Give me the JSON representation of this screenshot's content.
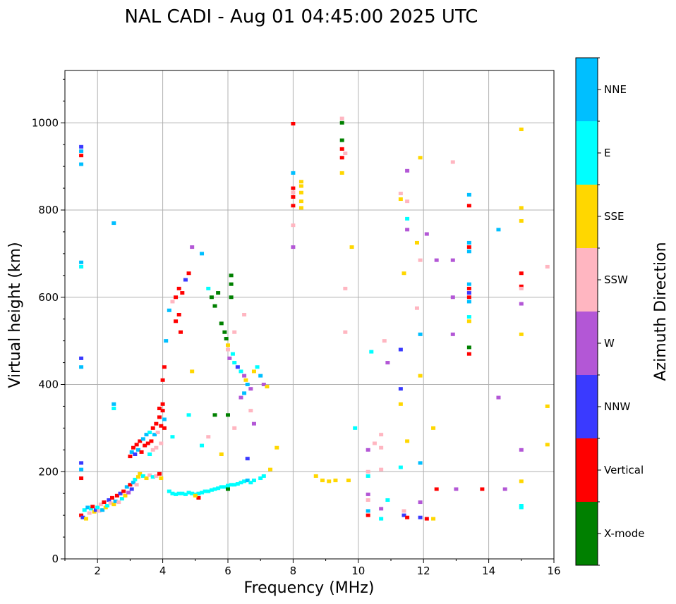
{
  "chart_data": {
    "type": "scatter",
    "title": "NAL CADI - Aug 01 04:45:00 2025 UTC",
    "xlabel": "Frequency (MHz)",
    "ylabel": "Virtual height (km)",
    "xlim": [
      1,
      16
    ],
    "ylim": [
      0,
      1120
    ],
    "x_ticks": [
      2,
      4,
      6,
      8,
      10,
      12,
      14,
      16
    ],
    "y_ticks": [
      0,
      200,
      400,
      600,
      800,
      1000
    ],
    "grid": true,
    "colorbar": {
      "title": "Azimuth Direction",
      "categories": [
        {
          "name": "X-mode",
          "color": "#008000"
        },
        {
          "name": "Vertical",
          "color": "#ff0000"
        },
        {
          "name": "NNW",
          "color": "#3a3aff"
        },
        {
          "name": "W",
          "color": "#b357d6"
        },
        {
          "name": "SSW",
          "color": "#ffb6c1"
        },
        {
          "name": "SSE",
          "color": "#ffd700"
        },
        {
          "name": "E",
          "color": "#00ffff"
        },
        {
          "name": "NNE",
          "color": "#00bfff"
        }
      ]
    },
    "points": [
      [
        1.5,
        945,
        "NNW"
      ],
      [
        1.5,
        935,
        "NNE"
      ],
      [
        1.5,
        925,
        "Vertical"
      ],
      [
        1.5,
        905,
        "NNE"
      ],
      [
        1.5,
        680,
        "NNE"
      ],
      [
        1.5,
        670,
        "E"
      ],
      [
        1.5,
        460,
        "NNW"
      ],
      [
        1.5,
        440,
        "NNE"
      ],
      [
        1.5,
        220,
        "NNW"
      ],
      [
        1.5,
        205,
        "NNE"
      ],
      [
        1.5,
        185,
        "Vertical"
      ],
      [
        1.5,
        100,
        "Vertical"
      ],
      [
        1.55,
        95,
        "NNW"
      ],
      [
        1.6,
        112,
        "E"
      ],
      [
        1.65,
        92,
        "SSE"
      ],
      [
        1.7,
        118,
        "NNE"
      ],
      [
        1.75,
        105,
        "SSW"
      ],
      [
        1.8,
        115,
        "E"
      ],
      [
        1.85,
        120,
        "Vertical"
      ],
      [
        1.9,
        108,
        "SSE"
      ],
      [
        1.95,
        112,
        "NNW"
      ],
      [
        2.0,
        118,
        "E"
      ],
      [
        2.05,
        110,
        "SSW"
      ],
      [
        2.1,
        125,
        "SSW"
      ],
      [
        2.15,
        112,
        "NNE"
      ],
      [
        2.2,
        130,
        "Vertical"
      ],
      [
        2.25,
        118,
        "SSE"
      ],
      [
        2.3,
        122,
        "E"
      ],
      [
        2.35,
        135,
        "NNW"
      ],
      [
        2.4,
        128,
        "SSW"
      ],
      [
        2.45,
        140,
        "Vertical"
      ],
      [
        2.5,
        125,
        "SSE"
      ],
      [
        2.5,
        770,
        "NNE"
      ],
      [
        2.5,
        355,
        "NNE"
      ],
      [
        2.5,
        345,
        "E"
      ],
      [
        2.55,
        132,
        "NNE"
      ],
      [
        2.6,
        145,
        "Vertical"
      ],
      [
        2.65,
        130,
        "SSW"
      ],
      [
        2.7,
        150,
        "NNW"
      ],
      [
        2.75,
        138,
        "E"
      ],
      [
        2.8,
        155,
        "Vertical"
      ],
      [
        2.85,
        145,
        "SSE"
      ],
      [
        2.9,
        165,
        "NNE"
      ],
      [
        2.95,
        152,
        "W"
      ],
      [
        3.0,
        170,
        "Vertical"
      ],
      [
        3.05,
        160,
        "NNW"
      ],
      [
        3.1,
        175,
        "NNE"
      ],
      [
        3.15,
        182,
        "E"
      ],
      [
        3.2,
        170,
        "SSW"
      ],
      [
        3.25,
        188,
        "SSE"
      ],
      [
        3.3,
        195,
        "SSE"
      ],
      [
        3.4,
        190,
        "E"
      ],
      [
        3.5,
        185,
        "SSE"
      ],
      [
        3.6,
        192,
        "SSW"
      ],
      [
        3.7,
        188,
        "E"
      ],
      [
        3.8,
        190,
        "SSW"
      ],
      [
        3.9,
        195,
        "Vertical"
      ],
      [
        3.95,
        185,
        "SSE"
      ],
      [
        3.0,
        235,
        "Vertical"
      ],
      [
        3.05,
        245,
        "NNE"
      ],
      [
        3.1,
        255,
        "Vertical"
      ],
      [
        3.15,
        240,
        "NNW"
      ],
      [
        3.2,
        262,
        "Vertical"
      ],
      [
        3.25,
        250,
        "NNE"
      ],
      [
        3.3,
        270,
        "Vertical"
      ],
      [
        3.35,
        245,
        "Vertical"
      ],
      [
        3.4,
        275,
        "NNE"
      ],
      [
        3.45,
        260,
        "Vertical"
      ],
      [
        3.5,
        285,
        "NNE"
      ],
      [
        3.55,
        265,
        "Vertical"
      ],
      [
        3.6,
        290,
        "E"
      ],
      [
        3.65,
        270,
        "Vertical"
      ],
      [
        3.7,
        300,
        "Vertical"
      ],
      [
        3.75,
        285,
        "NNE"
      ],
      [
        3.8,
        310,
        "Vertical"
      ],
      [
        3.85,
        290,
        "SSW"
      ],
      [
        3.9,
        325,
        "Vertical"
      ],
      [
        3.95,
        305,
        "Vertical"
      ],
      [
        4.0,
        340,
        "Vertical"
      ],
      [
        4.05,
        320,
        "NNE"
      ],
      [
        4.0,
        355,
        "Vertical"
      ],
      [
        3.9,
        345,
        "Vertical"
      ],
      [
        4.05,
        300,
        "Vertical"
      ],
      [
        3.95,
        265,
        "SSW"
      ],
      [
        3.8,
        255,
        "SSW"
      ],
      [
        3.7,
        250,
        "SSW"
      ],
      [
        3.6,
        240,
        "E"
      ],
      [
        4.0,
        410,
        "Vertical"
      ],
      [
        4.05,
        440,
        "Vertical"
      ],
      [
        4.1,
        500,
        "NNE"
      ],
      [
        4.2,
        570,
        "NNE"
      ],
      [
        4.3,
        280,
        "E"
      ],
      [
        4.3,
        590,
        "SSW"
      ],
      [
        4.4,
        545,
        "Vertical"
      ],
      [
        4.4,
        600,
        "Vertical"
      ],
      [
        4.5,
        560,
        "Vertical"
      ],
      [
        4.5,
        620,
        "Vertical"
      ],
      [
        4.55,
        520,
        "Vertical"
      ],
      [
        4.6,
        610,
        "Vertical"
      ],
      [
        4.7,
        640,
        "NNW"
      ],
      [
        4.8,
        655,
        "Vertical"
      ],
      [
        4.9,
        715,
        "W"
      ],
      [
        4.9,
        430,
        "SSE"
      ],
      [
        4.8,
        330,
        "E"
      ],
      [
        4.2,
        155,
        "E"
      ],
      [
        4.3,
        150,
        "E"
      ],
      [
        4.4,
        148,
        "E"
      ],
      [
        4.5,
        150,
        "E"
      ],
      [
        4.6,
        150,
        "E"
      ],
      [
        4.7,
        148,
        "E"
      ],
      [
        4.8,
        152,
        "E"
      ],
      [
        4.9,
        150,
        "E"
      ],
      [
        5.0,
        148,
        "E"
      ],
      [
        5.1,
        150,
        "E"
      ],
      [
        5.2,
        152,
        "E"
      ],
      [
        5.3,
        155,
        "E"
      ],
      [
        5.4,
        155,
        "E"
      ],
      [
        5.5,
        158,
        "E"
      ],
      [
        5.6,
        160,
        "E"
      ],
      [
        5.7,
        162,
        "E"
      ],
      [
        5.8,
        165,
        "E"
      ],
      [
        5.9,
        165,
        "E"
      ],
      [
        6.0,
        168,
        "E"
      ],
      [
        6.1,
        170,
        "E"
      ],
      [
        6.2,
        170,
        "E"
      ],
      [
        6.3,
        172,
        "E"
      ],
      [
        6.4,
        175,
        "E"
      ],
      [
        6.5,
        178,
        "E"
      ],
      [
        6.6,
        180,
        "NNE"
      ],
      [
        6.7,
        175,
        "E"
      ],
      [
        6.8,
        180,
        "E"
      ],
      [
        7.0,
        185,
        "E"
      ],
      [
        7.1,
        190,
        "E"
      ],
      [
        5.1,
        140,
        "Vertical"
      ],
      [
        5.0,
        145,
        "SSE"
      ],
      [
        6.0,
        160,
        "X-mode"
      ],
      [
        5.2,
        700,
        "NNE"
      ],
      [
        5.4,
        620,
        "E"
      ],
      [
        5.5,
        600,
        "X-mode"
      ],
      [
        5.6,
        580,
        "X-mode"
      ],
      [
        5.7,
        610,
        "X-mode"
      ],
      [
        5.8,
        540,
        "X-mode"
      ],
      [
        5.9,
        520,
        "X-mode"
      ],
      [
        5.95,
        505,
        "X-mode"
      ],
      [
        6.0,
        490,
        "SSE"
      ],
      [
        6.1,
        650,
        "X-mode"
      ],
      [
        6.1,
        630,
        "X-mode"
      ],
      [
        6.1,
        600,
        "X-mode"
      ],
      [
        6.15,
        470,
        "E"
      ],
      [
        6.2,
        450,
        "E"
      ],
      [
        6.3,
        440,
        "NNW"
      ],
      [
        6.4,
        430,
        "E"
      ],
      [
        6.5,
        420,
        "W"
      ],
      [
        6.55,
        410,
        "SSE"
      ],
      [
        6.6,
        400,
        "NNE"
      ],
      [
        6.7,
        390,
        "W"
      ],
      [
        6.8,
        430,
        "SSE"
      ],
      [
        6.9,
        440,
        "E"
      ],
      [
        7.0,
        420,
        "NNE"
      ],
      [
        7.1,
        400,
        "W"
      ],
      [
        7.2,
        395,
        "SSE"
      ],
      [
        6.0,
        480,
        "SSW"
      ],
      [
        6.05,
        460,
        "W"
      ],
      [
        6.2,
        520,
        "SSW"
      ],
      [
        6.5,
        560,
        "SSW"
      ],
      [
        6.5,
        380,
        "NNE"
      ],
      [
        6.4,
        370,
        "W"
      ],
      [
        6.7,
        340,
        "SSW"
      ],
      [
        6.8,
        310,
        "W"
      ],
      [
        6.2,
        300,
        "SSW"
      ],
      [
        6.0,
        330,
        "X-mode"
      ],
      [
        5.6,
        330,
        "X-mode"
      ],
      [
        5.4,
        280,
        "SSW"
      ],
      [
        5.2,
        260,
        "E"
      ],
      [
        5.8,
        240,
        "SSE"
      ],
      [
        6.6,
        230,
        "NNW"
      ],
      [
        7.5,
        255,
        "SSE"
      ],
      [
        7.3,
        205,
        "SSE"
      ],
      [
        8.0,
        998,
        "Vertical"
      ],
      [
        8.0,
        885,
        "NNE"
      ],
      [
        8.0,
        850,
        "Vertical"
      ],
      [
        8.0,
        840,
        "SSW"
      ],
      [
        8.0,
        830,
        "Vertical"
      ],
      [
        8.0,
        810,
        "Vertical"
      ],
      [
        8.0,
        765,
        "SSW"
      ],
      [
        8.0,
        715,
        "W"
      ],
      [
        8.25,
        865,
        "SSE"
      ],
      [
        8.25,
        855,
        "SSE"
      ],
      [
        8.25,
        840,
        "SSE"
      ],
      [
        8.25,
        820,
        "SSE"
      ],
      [
        8.25,
        805,
        "SSE"
      ],
      [
        8.7,
        190,
        "SSE"
      ],
      [
        8.9,
        180,
        "SSE"
      ],
      [
        9.1,
        178,
        "SSE"
      ],
      [
        9.3,
        180,
        "SSE"
      ],
      [
        9.5,
        1010,
        "SSW"
      ],
      [
        9.5,
        1000,
        "X-mode"
      ],
      [
        9.5,
        960,
        "X-mode"
      ],
      [
        9.5,
        940,
        "Vertical"
      ],
      [
        9.5,
        920,
        "Vertical"
      ],
      [
        9.5,
        885,
        "SSE"
      ],
      [
        9.6,
        930,
        "SSW"
      ],
      [
        9.6,
        620,
        "SSW"
      ],
      [
        9.6,
        520,
        "SSW"
      ],
      [
        9.7,
        180,
        "SSE"
      ],
      [
        9.8,
        715,
        "SSE"
      ],
      [
        9.9,
        300,
        "E"
      ],
      [
        10.3,
        250,
        "W"
      ],
      [
        10.3,
        200,
        "SSW"
      ],
      [
        10.3,
        190,
        "E"
      ],
      [
        10.3,
        148,
        "W"
      ],
      [
        10.3,
        135,
        "SSW"
      ],
      [
        10.3,
        110,
        "NNE"
      ],
      [
        10.3,
        100,
        "Vertical"
      ],
      [
        10.4,
        475,
        "E"
      ],
      [
        10.5,
        265,
        "SSW"
      ],
      [
        10.7,
        285,
        "SSW"
      ],
      [
        10.7,
        255,
        "SSW"
      ],
      [
        10.7,
        205,
        "SSW"
      ],
      [
        10.7,
        115,
        "W"
      ],
      [
        10.7,
        92,
        "E"
      ],
      [
        10.8,
        500,
        "SSW"
      ],
      [
        10.9,
        450,
        "W"
      ],
      [
        10.9,
        135,
        "E"
      ],
      [
        11.3,
        480,
        "NNW"
      ],
      [
        11.3,
        390,
        "NNW"
      ],
      [
        11.3,
        355,
        "SSE"
      ],
      [
        11.3,
        210,
        "E"
      ],
      [
        11.3,
        838,
        "SSW"
      ],
      [
        11.3,
        825,
        "SSE"
      ],
      [
        11.4,
        655,
        "SSE"
      ],
      [
        11.4,
        110,
        "SSW"
      ],
      [
        11.4,
        100,
        "NNW"
      ],
      [
        11.5,
        890,
        "W"
      ],
      [
        11.5,
        820,
        "SSW"
      ],
      [
        11.5,
        780,
        "E"
      ],
      [
        11.5,
        755,
        "W"
      ],
      [
        11.5,
        270,
        "SSE"
      ],
      [
        11.5,
        95,
        "Vertical"
      ],
      [
        11.8,
        725,
        "SSE"
      ],
      [
        11.8,
        575,
        "SSW"
      ],
      [
        11.9,
        920,
        "SSE"
      ],
      [
        11.9,
        685,
        "SSW"
      ],
      [
        11.9,
        515,
        "NNE"
      ],
      [
        11.9,
        420,
        "SSE"
      ],
      [
        11.9,
        220,
        "NNE"
      ],
      [
        11.9,
        130,
        "W"
      ],
      [
        11.9,
        95,
        "NNW"
      ],
      [
        12.1,
        745,
        "W"
      ],
      [
        12.1,
        92,
        "Vertical"
      ],
      [
        12.3,
        92,
        "SSE"
      ],
      [
        12.3,
        300,
        "SSE"
      ],
      [
        12.4,
        160,
        "Vertical"
      ],
      [
        12.4,
        685,
        "W"
      ],
      [
        12.9,
        910,
        "SSW"
      ],
      [
        12.9,
        685,
        "W"
      ],
      [
        12.9,
        600,
        "W"
      ],
      [
        12.9,
        515,
        "W"
      ],
      [
        13.0,
        160,
        "W"
      ],
      [
        13.4,
        835,
        "NNE"
      ],
      [
        13.4,
        810,
        "Vertical"
      ],
      [
        13.4,
        725,
        "NNE"
      ],
      [
        13.4,
        715,
        "Vertical"
      ],
      [
        13.4,
        705,
        "NNE"
      ],
      [
        13.4,
        630,
        "NNE"
      ],
      [
        13.4,
        620,
        "Vertical"
      ],
      [
        13.4,
        610,
        "NNW"
      ],
      [
        13.4,
        600,
        "Vertical"
      ],
      [
        13.4,
        590,
        "NNE"
      ],
      [
        13.4,
        555,
        "E"
      ],
      [
        13.4,
        545,
        "SSE"
      ],
      [
        13.4,
        485,
        "X-mode"
      ],
      [
        13.4,
        470,
        "Vertical"
      ],
      [
        13.8,
        160,
        "Vertical"
      ],
      [
        14.3,
        755,
        "NNE"
      ],
      [
        14.3,
        370,
        "W"
      ],
      [
        14.5,
        160,
        "W"
      ],
      [
        15.0,
        985,
        "SSE"
      ],
      [
        15.0,
        805,
        "SSE"
      ],
      [
        15.0,
        775,
        "SSE"
      ],
      [
        15.0,
        655,
        "Vertical"
      ],
      [
        15.0,
        625,
        "Vertical"
      ],
      [
        15.0,
        620,
        "SSW"
      ],
      [
        15.0,
        585,
        "W"
      ],
      [
        15.0,
        515,
        "SSE"
      ],
      [
        15.0,
        250,
        "W"
      ],
      [
        15.0,
        178,
        "SSE"
      ],
      [
        15.0,
        122,
        "E"
      ],
      [
        15.0,
        118,
        "E"
      ],
      [
        15.8,
        670,
        "SSW"
      ],
      [
        15.8,
        350,
        "SSE"
      ],
      [
        15.8,
        262,
        "SSE"
      ]
    ]
  }
}
